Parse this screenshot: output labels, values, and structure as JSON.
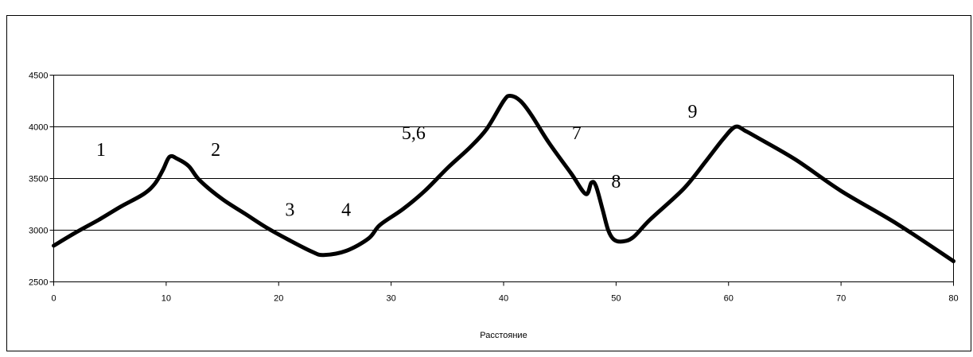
{
  "chart_data": {
    "type": "line",
    "title": "",
    "xlabel": "Расстояние",
    "ylabel": "",
    "xlim": [
      0,
      80
    ],
    "ylim": [
      2500,
      4500
    ],
    "x_ticks": [
      0,
      10,
      20,
      30,
      40,
      50,
      60,
      70,
      80
    ],
    "y_ticks": [
      2500,
      3000,
      3500,
      4000,
      4500
    ],
    "x_tick_labels": [
      "0",
      "10",
      "20",
      "30",
      "40",
      "50",
      "60",
      "70",
      "80"
    ],
    "y_tick_labels": [
      "2500",
      "3000",
      "3500",
      "4000",
      "4500"
    ],
    "grid": "horizontal",
    "legend": "none",
    "line_color": "#000000",
    "series": [
      {
        "x": [
          0,
          2,
          4,
          6,
          8,
          9,
          9.7,
          10.3,
          11,
          12,
          13,
          15,
          17,
          19,
          21,
          23,
          24,
          26,
          28,
          29,
          31,
          33,
          35,
          37,
          38.5,
          40,
          40.6,
          41.5,
          42.5,
          44,
          46,
          47.3,
          47.8,
          48.2,
          48.8,
          49.3,
          49.8,
          50.5,
          51.5,
          53,
          56,
          58,
          59.5,
          60.6,
          61.5,
          62.5,
          66,
          70,
          75,
          80
        ],
        "y": [
          2850,
          2980,
          3100,
          3230,
          3350,
          3450,
          3580,
          3710,
          3690,
          3620,
          3480,
          3300,
          3160,
          3020,
          2900,
          2790,
          2760,
          2800,
          2920,
          3050,
          3200,
          3380,
          3600,
          3800,
          3980,
          4250,
          4300,
          4250,
          4110,
          3850,
          3550,
          3350,
          3460,
          3430,
          3200,
          3000,
          2910,
          2890,
          2930,
          3100,
          3400,
          3670,
          3880,
          4000,
          3960,
          3900,
          3680,
          3380,
          3060,
          2700
        ]
      }
    ],
    "annotations": [
      {
        "text": "1",
        "x": 4.2,
        "y": 3720
      },
      {
        "text": "2",
        "x": 14.4,
        "y": 3720
      },
      {
        "text": "3",
        "x": 21,
        "y": 3140
      },
      {
        "text": "4",
        "x": 26,
        "y": 3140
      },
      {
        "text": "5,6",
        "x": 32,
        "y": 3880
      },
      {
        "text": "7",
        "x": 46.5,
        "y": 3880
      },
      {
        "text": "8",
        "x": 50,
        "y": 3410
      },
      {
        "text": "9",
        "x": 56.8,
        "y": 4090
      }
    ]
  }
}
